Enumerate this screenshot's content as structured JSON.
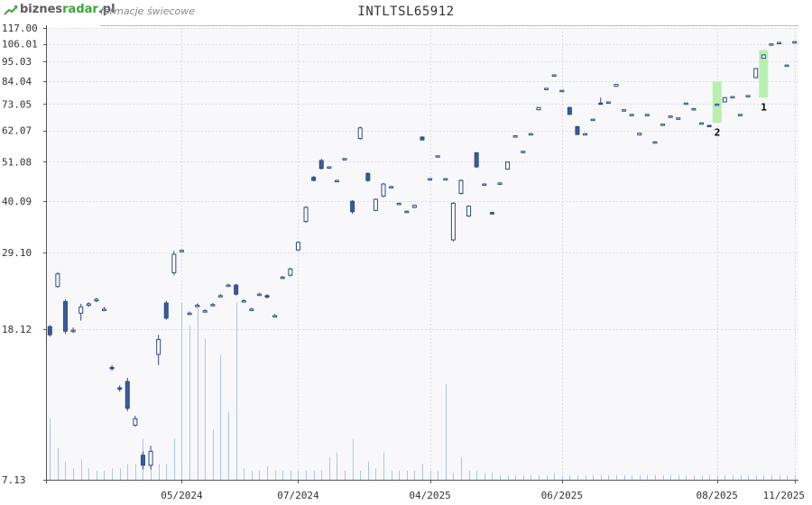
{
  "header": {
    "logo_main": "biznes",
    "logo_accent": "radar",
    "logo_suffix": ".pl",
    "subtitle": "formacje świecowe"
  },
  "chart_data": {
    "type": "candlestick",
    "title": "INTLTSL65912",
    "y_scale": "log",
    "ylim": [
      7.13,
      117.0
    ],
    "y_ticks": [
      117.0,
      106.01,
      95.03,
      84.04,
      73.05,
      62.07,
      51.08,
      40.09,
      29.1,
      18.12,
      7.13
    ],
    "y_tick_labels": [
      "117.00",
      "106.01",
      "95.03",
      "84.04",
      "73.05",
      "62.07",
      "51.08",
      "40.09",
      "29.10",
      "18.12",
      "7.13"
    ],
    "x_labels": [
      "05/2024",
      "07/2024",
      "04/2025",
      "06/2025",
      "08/2025",
      "11/2025"
    ],
    "x_label_index": [
      17,
      32,
      49,
      66,
      86,
      96
    ],
    "grid": true,
    "candles": [
      [
        18.4,
        17.5,
        18.6,
        17.3
      ],
      [
        23.6,
        25.5,
        25.8,
        23.4
      ],
      [
        21.5,
        17.9,
        21.8,
        17.6
      ],
      [
        18.0,
        18.0,
        18.3,
        17.7
      ],
      [
        20.0,
        20.8,
        21.2,
        19.1
      ],
      [
        21.0,
        21.2,
        21.4,
        20.8
      ],
      [
        21.6,
        21.8,
        22.0,
        21.4
      ],
      [
        20.5,
        20.5,
        20.8,
        20.3
      ],
      [
        14.3,
        14.2,
        14.5,
        14.0
      ],
      [
        12.6,
        12.5,
        12.8,
        12.3
      ],
      [
        13.1,
        11.1,
        13.4,
        10.9
      ],
      [
        10.0,
        10.4,
        10.6,
        9.9
      ],
      [
        8.3,
        7.8,
        8.5,
        7.6
      ],
      [
        7.8,
        8.5,
        8.8,
        7.6
      ],
      [
        15.5,
        17.0,
        17.5,
        14.5
      ],
      [
        21.3,
        19.4,
        21.6,
        19.2
      ],
      [
        25.7,
        28.8,
        29.4,
        25.3
      ],
      [
        29.5,
        29.5,
        29.7,
        29.3
      ],
      [
        20.0,
        20.0,
        20.2,
        19.8
      ],
      [
        21.0,
        21.0,
        21.2,
        20.8
      ],
      [
        20.3,
        20.3,
        20.5,
        20.1
      ],
      [
        21.1,
        21.1,
        21.3,
        20.9
      ],
      [
        22.3,
        22.3,
        22.5,
        22.1
      ],
      [
        23.8,
        23.8,
        24.0,
        23.6
      ],
      [
        23.8,
        22.5,
        24.0,
        22.3
      ],
      [
        21.6,
        21.6,
        21.8,
        21.4
      ],
      [
        20.5,
        20.5,
        20.7,
        20.3
      ],
      [
        22.5,
        22.5,
        22.7,
        22.3
      ],
      [
        22.3,
        22.1,
        22.5,
        21.9
      ],
      [
        19.7,
        19.7,
        19.9,
        19.5
      ],
      [
        25.0,
        25.0,
        25.2,
        24.8
      ],
      [
        25.3,
        26.3,
        26.5,
        25.1
      ],
      [
        29.6,
        31.0,
        31.2,
        29.4
      ],
      [
        35.3,
        38.5,
        38.8,
        35.0
      ],
      [
        46.4,
        45.5,
        46.8,
        45.3
      ],
      [
        51.5,
        49.0,
        52.0,
        48.7
      ],
      [
        49.5,
        49.5,
        49.7,
        49.3
      ],
      [
        45.5,
        45.5,
        45.7,
        45.3
      ],
      [
        52.1,
        52.1,
        52.3,
        51.9
      ],
      [
        40.0,
        37.5,
        40.3,
        37.0
      ],
      [
        59.0,
        63.0,
        63.5,
        58.5
      ],
      [
        47.5,
        45.5,
        47.9,
        45.1
      ],
      [
        37.8,
        40.5,
        40.7,
        37.6
      ],
      [
        41.3,
        44.5,
        44.8,
        41.0
      ],
      [
        43.8,
        43.8,
        44.0,
        43.6
      ],
      [
        39.5,
        39.5,
        39.7,
        39.3
      ],
      [
        37.6,
        37.6,
        37.8,
        37.4
      ],
      [
        38.5,
        39.0,
        39.2,
        38.3
      ],
      [
        59.5,
        58.5,
        59.8,
        58.3
      ],
      [
        46.0,
        46.0,
        46.2,
        45.8
      ],
      [
        53.0,
        53.0,
        53.2,
        52.8
      ],
      [
        46.0,
        46.0,
        46.2,
        45.8
      ],
      [
        31.5,
        39.5,
        39.8,
        31.2
      ],
      [
        42.0,
        45.5,
        45.8,
        41.7
      ],
      [
        36.5,
        38.8,
        39.0,
        36.3
      ],
      [
        54.0,
        49.5,
        54.3,
        49.2
      ],
      [
        44.5,
        44.5,
        44.7,
        44.3
      ],
      [
        37.3,
        37.0,
        37.5,
        36.8
      ],
      [
        44.8,
        44.8,
        45.0,
        44.6
      ],
      [
        48.8,
        51.0,
        51.2,
        48.6
      ],
      [
        60.0,
        60.0,
        60.2,
        59.8
      ],
      [
        54.5,
        54.5,
        54.7,
        54.3
      ],
      [
        60.8,
        60.8,
        61.0,
        60.6
      ],
      [
        70.5,
        71.5,
        71.7,
        70.3
      ],
      [
        80.5,
        80.5,
        80.7,
        80.3
      ],
      [
        87.5,
        87.5,
        87.7,
        87.3
      ],
      [
        79.5,
        79.5,
        79.7,
        79.3
      ],
      [
        71.5,
        68.5,
        71.8,
        68.3
      ],
      [
        63.5,
        60.5,
        63.8,
        60.3
      ],
      [
        60.8,
        60.8,
        61.0,
        60.6
      ],
      [
        66.5,
        66.5,
        66.7,
        66.3
      ],
      [
        73.5,
        73.0,
        76.0,
        72.8
      ],
      [
        74.0,
        74.0,
        74.2,
        73.8
      ],
      [
        81.5,
        82.5,
        82.7,
        81.3
      ],
      [
        70.5,
        70.5,
        70.7,
        70.3
      ],
      [
        68.5,
        68.5,
        68.7,
        68.3
      ],
      [
        60.3,
        61.0,
        61.2,
        60.1
      ],
      [
        68.5,
        68.5,
        68.7,
        68.3
      ],
      [
        57.8,
        57.8,
        58.0,
        57.6
      ],
      [
        64.5,
        64.5,
        64.7,
        64.3
      ],
      [
        67.8,
        67.8,
        68.0,
        67.6
      ],
      [
        67.0,
        67.0,
        67.2,
        66.8
      ],
      [
        73.5,
        73.5,
        73.7,
        73.3
      ],
      [
        71.0,
        71.0,
        71.2,
        70.8
      ],
      [
        64.5,
        65.0,
        65.2,
        64.3
      ],
      [
        64.0,
        63.5,
        64.2,
        63.3
      ],
      [
        73.0,
        73.0,
        73.2,
        72.8
      ],
      [
        74.0,
        76.0,
        76.2,
        73.8
      ],
      [
        76.5,
        76.5,
        76.7,
        76.3
      ],
      [
        68.5,
        68.5,
        68.7,
        68.3
      ],
      [
        77.0,
        77.0,
        77.2,
        76.8
      ],
      [
        86.0,
        91.0,
        91.3,
        85.8
      ],
      [
        97.0,
        99.0,
        99.3,
        96.8
      ],
      [
        106.0,
        106.0,
        106.2,
        105.8
      ],
      [
        107.0,
        107.0,
        107.2,
        106.8
      ],
      [
        93.0,
        93.0,
        93.2,
        92.8
      ],
      [
        107.5,
        107.5,
        107.7,
        107.3
      ]
    ],
    "volume": [
      0.27,
      0.14,
      0.08,
      0.05,
      0.09,
      0.05,
      0.04,
      0.04,
      0.05,
      0.05,
      0.07,
      0.07,
      0.18,
      0.07,
      0.07,
      0.07,
      0.18,
      0.78,
      0.68,
      0.78,
      0.62,
      0.22,
      0.55,
      0.3,
      0.78,
      0.05,
      0.04,
      0.04,
      0.06,
      0.04,
      0.04,
      0.04,
      0.04,
      0.04,
      0.04,
      0.04,
      0.1,
      0.12,
      0.04,
      0.18,
      0.04,
      0.08,
      0.05,
      0.12,
      0.04,
      0.04,
      0.04,
      0.04,
      0.07,
      0.04,
      0.04,
      0.42,
      0.03,
      0.1,
      0.04,
      0.04,
      0.03,
      0.03,
      0.02,
      0.02,
      0.02,
      0.02,
      0.02,
      0.02,
      0.02,
      0.03,
      0.02,
      0.02,
      0.02,
      0.02,
      0.02,
      0.02,
      0.02,
      0.02,
      0.02,
      0.02,
      0.02,
      0.02,
      0.02,
      0.02,
      0.02,
      0.02,
      0.02,
      0.02,
      0.02,
      0.02,
      0.02,
      0.02,
      0.02,
      0.02,
      0.02,
      0.02,
      0.02,
      0.02,
      0.02,
      0.02,
      0.02
    ],
    "annotations": [
      {
        "label": "2",
        "candle_index": 86,
        "range": [
          65.0,
          84.0
        ]
      },
      {
        "label": "1",
        "candle_index": 92,
        "range": [
          76.0,
          102.0
        ]
      }
    ],
    "colors": {
      "bull_fill": "#ffffff",
      "bear_fill": "#3b5b9a",
      "candle_stroke": "#2c4a85",
      "volume": "#a8c8e8",
      "highlight": "#b8f0b0",
      "grid": "#dddddd",
      "plot_bg": "#f8f8fb"
    }
  }
}
